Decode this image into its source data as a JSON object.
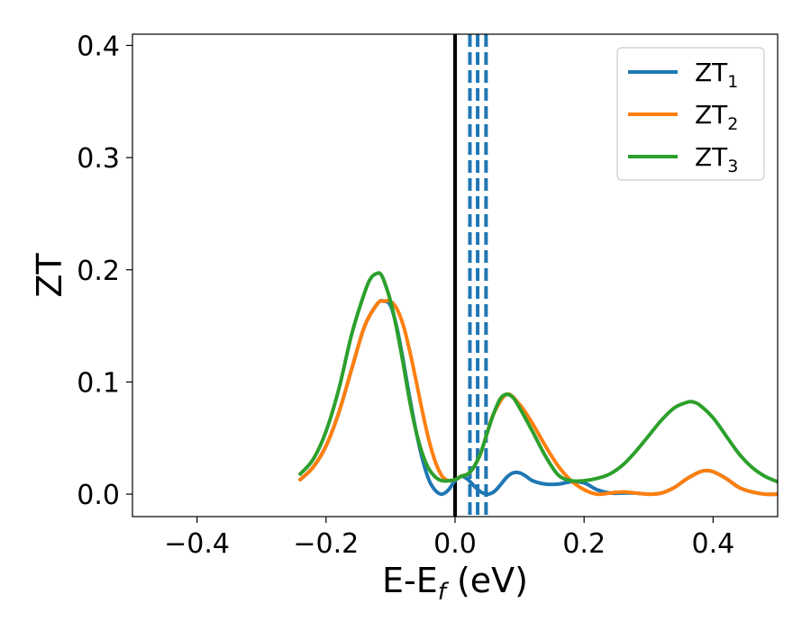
{
  "chart_data": {
    "type": "line",
    "xlabel": "E-E_f (eV)",
    "xlabel_parts": {
      "main": "E-E",
      "sub": "f",
      "unit": " (eV)"
    },
    "ylabel": "ZT",
    "xlim": [
      -0.5,
      0.5
    ],
    "ylim": [
      -0.02,
      0.41
    ],
    "x_ticks": [
      -0.4,
      -0.2,
      0.0,
      0.2,
      0.4
    ],
    "x_tick_labels": [
      "−0.4",
      "−0.2",
      "0.0",
      "0.2",
      "0.4"
    ],
    "y_ticks": [
      0.0,
      0.1,
      0.2,
      0.3,
      0.4
    ],
    "y_tick_labels": [
      "0.0",
      "0.1",
      "0.2",
      "0.3",
      "0.4"
    ],
    "grid": false,
    "legend_position": "top-right",
    "vertical_lines": [
      {
        "x": 0.0,
        "style": "solid",
        "color": "#000000"
      },
      {
        "x": 0.023,
        "style": "dashed",
        "color": "#1f77b4"
      },
      {
        "x": 0.035,
        "style": "dashed",
        "color": "#1f77b4"
      },
      {
        "x": 0.048,
        "style": "dashed",
        "color": "#1f77b4"
      }
    ],
    "series": [
      {
        "name": "ZT1",
        "label_main": "ZT",
        "label_sub": "1",
        "color": "#1f77b4",
        "x": [
          -0.24,
          -0.22,
          -0.2,
          -0.18,
          -0.16,
          -0.14,
          -0.12,
          -0.11,
          -0.1,
          -0.09,
          -0.08,
          -0.07,
          -0.06,
          -0.05,
          -0.04,
          -0.03,
          -0.02,
          -0.01,
          0.0,
          0.01,
          0.02,
          0.03,
          0.04,
          0.05,
          0.06,
          0.07,
          0.08,
          0.09,
          0.1,
          0.11,
          0.12,
          0.14,
          0.16,
          0.18,
          0.2,
          0.22,
          0.24,
          0.26,
          0.28,
          0.3,
          0.32,
          0.34,
          0.36,
          0.38,
          0.39,
          0.4,
          0.42,
          0.44,
          0.46,
          0.48,
          0.5
        ],
        "y": [
          0.013,
          0.024,
          0.043,
          0.073,
          0.112,
          0.15,
          0.17,
          0.172,
          0.168,
          0.148,
          0.118,
          0.085,
          0.055,
          0.03,
          0.012,
          0.003,
          0.0,
          0.004,
          0.012,
          0.016,
          0.013,
          0.007,
          0.002,
          0.0,
          0.002,
          0.008,
          0.015,
          0.019,
          0.019,
          0.016,
          0.012,
          0.009,
          0.009,
          0.011,
          0.01,
          0.004,
          0.001,
          0.001,
          0.001,
          0.0,
          0.001,
          0.006,
          0.014,
          0.02,
          0.021,
          0.02,
          0.014,
          0.006,
          0.002,
          0.0,
          0.0
        ]
      },
      {
        "name": "ZT2",
        "label_main": "ZT",
        "label_sub": "2",
        "color": "#ff7f0e",
        "x": [
          -0.24,
          -0.22,
          -0.2,
          -0.18,
          -0.16,
          -0.14,
          -0.12,
          -0.11,
          -0.1,
          -0.09,
          -0.08,
          -0.07,
          -0.06,
          -0.05,
          -0.04,
          -0.03,
          -0.02,
          -0.01,
          0.0,
          0.01,
          0.02,
          0.03,
          0.04,
          0.05,
          0.06,
          0.08,
          0.1,
          0.12,
          0.14,
          0.16,
          0.18,
          0.2,
          0.22,
          0.24,
          0.26,
          0.28,
          0.3,
          0.32,
          0.34,
          0.36,
          0.38,
          0.39,
          0.4,
          0.42,
          0.44,
          0.46,
          0.48,
          0.5
        ],
        "y": [
          0.013,
          0.024,
          0.043,
          0.073,
          0.112,
          0.15,
          0.17,
          0.172,
          0.172,
          0.165,
          0.15,
          0.127,
          0.1,
          0.072,
          0.047,
          0.028,
          0.016,
          0.012,
          0.013,
          0.016,
          0.018,
          0.025,
          0.037,
          0.055,
          0.072,
          0.089,
          0.08,
          0.063,
          0.043,
          0.025,
          0.012,
          0.004,
          0.0,
          0.001,
          0.002,
          0.001,
          0.0,
          0.001,
          0.006,
          0.014,
          0.02,
          0.021,
          0.02,
          0.014,
          0.006,
          0.002,
          0.0,
          0.0
        ]
      },
      {
        "name": "ZT3",
        "label_main": "ZT",
        "label_sub": "3",
        "color": "#2ca02c",
        "x": [
          -0.24,
          -0.22,
          -0.2,
          -0.18,
          -0.16,
          -0.14,
          -0.13,
          -0.12,
          -0.115,
          -0.11,
          -0.1,
          -0.09,
          -0.08,
          -0.07,
          -0.06,
          -0.05,
          -0.04,
          -0.03,
          -0.02,
          -0.01,
          0.0,
          0.01,
          0.02,
          0.03,
          0.04,
          0.05,
          0.06,
          0.07,
          0.08,
          0.09,
          0.1,
          0.12,
          0.14,
          0.16,
          0.18,
          0.2,
          0.22,
          0.24,
          0.26,
          0.28,
          0.3,
          0.32,
          0.34,
          0.36,
          0.37,
          0.38,
          0.4,
          0.42,
          0.44,
          0.46,
          0.48,
          0.5
        ],
        "y": [
          0.018,
          0.031,
          0.056,
          0.094,
          0.143,
          0.18,
          0.193,
          0.197,
          0.196,
          0.19,
          0.172,
          0.146,
          0.115,
          0.082,
          0.055,
          0.035,
          0.022,
          0.015,
          0.012,
          0.012,
          0.013,
          0.016,
          0.018,
          0.025,
          0.037,
          0.055,
          0.072,
          0.085,
          0.089,
          0.086,
          0.077,
          0.056,
          0.034,
          0.017,
          0.012,
          0.012,
          0.014,
          0.018,
          0.026,
          0.038,
          0.052,
          0.066,
          0.077,
          0.082,
          0.082,
          0.079,
          0.068,
          0.052,
          0.036,
          0.024,
          0.016,
          0.011
        ]
      }
    ]
  }
}
